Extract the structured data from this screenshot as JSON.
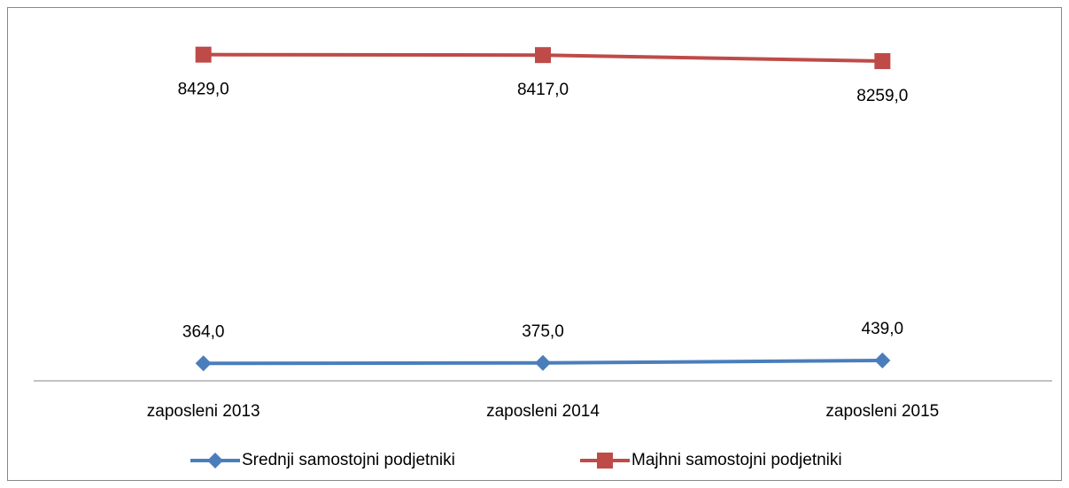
{
  "chart_data": {
    "type": "line",
    "categories": [
      "zaposleni 2013",
      "zaposleni 2014",
      "zaposleni 2015"
    ],
    "series": [
      {
        "name": "Srednji samostojni podjetniki",
        "color": "#4a7ebb",
        "marker": "diamond",
        "values": [
          364,
          375,
          439
        ],
        "value_labels": [
          "364,0",
          "375,0",
          "439,0"
        ]
      },
      {
        "name": "Majhni samostojni podjetniki",
        "color": "#be4b48",
        "marker": "square",
        "values": [
          8429,
          8417,
          8259
        ],
        "value_labels": [
          "8429,0",
          "8417,0",
          "8259,0"
        ]
      }
    ],
    "ylim": [
      0,
      9000
    ],
    "legend": "bottom"
  }
}
